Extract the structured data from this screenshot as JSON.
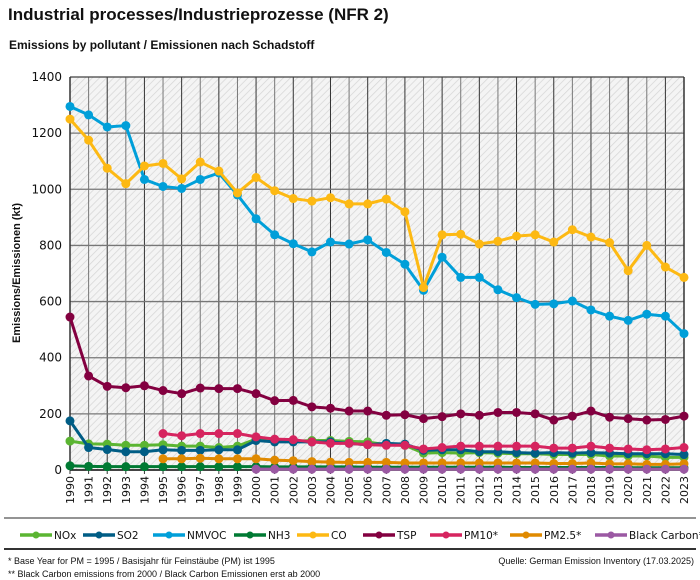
{
  "title": "Industrial processes/Industrieprozesse (NFR 2)",
  "subtitle": "Emissions by pollutant / Emissionen nach Schadstoff",
  "footnotes": [
    "* Base Year for PM = 1995 / Basisjahr für Feinstäube (PM) ist 1995",
    "** Black Carbon emissions  from 2000 / Black Carbon Emissionen erst ab 2000"
  ],
  "source": "Quelle: German Emission Inventory (17.03.2025)",
  "chart_data": {
    "type": "line",
    "title": "Industrial processes/Industrieprozesse (NFR 2)",
    "subtitle": "Emissions by pollutant / Emissionen nach Schadstoff",
    "xlabel": "",
    "ylabel": "Emissions/Emissionen (kt)",
    "ylim": [
      0,
      1400
    ],
    "yticks": [
      0,
      200,
      400,
      600,
      800,
      1000,
      1200,
      1400
    ],
    "grid": true,
    "legend": "bottom",
    "x": [
      1990,
      1991,
      1992,
      1993,
      1994,
      1995,
      1996,
      1997,
      1998,
      1999,
      2000,
      2001,
      2002,
      2003,
      2004,
      2005,
      2006,
      2007,
      2008,
      2009,
      2010,
      2011,
      2012,
      2013,
      2014,
      2015,
      2016,
      2017,
      2018,
      2019,
      2020,
      2021,
      2022,
      2023
    ],
    "series": [
      {
        "name": "NOx",
        "color": "#5bb532",
        "values": [
          103,
          93,
          92,
          88,
          88,
          90,
          85,
          85,
          80,
          85,
          110,
          108,
          102,
          105,
          105,
          102,
          100,
          90,
          88,
          60,
          62,
          60,
          62,
          60,
          58,
          58,
          55,
          55,
          55,
          50,
          50,
          50,
          45,
          45
        ]
      },
      {
        "name": "SO2",
        "color": "#005d85",
        "values": [
          175,
          80,
          73,
          65,
          65,
          72,
          70,
          70,
          72,
          72,
          105,
          100,
          100,
          100,
          100,
          95,
          90,
          95,
          92,
          70,
          72,
          72,
          65,
          65,
          62,
          60,
          62,
          60,
          62,
          60,
          58,
          58,
          58,
          55
        ]
      },
      {
        "name": "NMVOC",
        "color": "#009fd9",
        "values": [
          1295,
          1265,
          1222,
          1227,
          1035,
          1010,
          1003,
          1035,
          1058,
          980,
          895,
          838,
          806,
          777,
          812,
          805,
          820,
          775,
          733,
          640,
          758,
          686,
          686,
          642,
          614,
          590,
          592,
          602,
          570,
          548,
          533,
          555,
          548,
          486
        ]
      },
      {
        "name": "NH3",
        "color": "#007a33",
        "values": [
          15,
          13,
          12,
          12,
          12,
          12,
          12,
          12,
          12,
          12,
          12,
          11,
          11,
          11,
          11,
          11,
          10,
          10,
          10,
          10,
          10,
          10,
          10,
          10,
          9,
          9,
          9,
          9,
          9,
          9,
          8,
          8,
          8,
          8
        ]
      },
      {
        "name": "CO",
        "color": "#fdb913",
        "values": [
          1250,
          1175,
          1075,
          1020,
          1083,
          1092,
          1037,
          1097,
          1065,
          987,
          1042,
          995,
          967,
          958,
          970,
          948,
          948,
          965,
          920,
          650,
          838,
          840,
          805,
          815,
          833,
          838,
          812,
          856,
          830,
          810,
          710,
          800,
          723,
          686
        ]
      },
      {
        "name": "TSP",
        "color": "#830040",
        "values": [
          545,
          335,
          298,
          293,
          300,
          283,
          272,
          292,
          290,
          290,
          272,
          247,
          248,
          225,
          220,
          210,
          210,
          195,
          197,
          183,
          190,
          200,
          195,
          205,
          205,
          200,
          178,
          192,
          210,
          188,
          183,
          178,
          180,
          192
        ]
      },
      {
        "name": "PM10*",
        "color": "#d6245f",
        "values": [
          null,
          null,
          null,
          null,
          null,
          130,
          122,
          130,
          130,
          130,
          118,
          110,
          108,
          100,
          95,
          95,
          90,
          88,
          88,
          75,
          80,
          85,
          85,
          85,
          85,
          85,
          78,
          78,
          85,
          78,
          75,
          72,
          75,
          80
        ]
      },
      {
        "name": "PM2.5*",
        "color": "#e08a00",
        "values": [
          null,
          null,
          null,
          null,
          null,
          40,
          40,
          42,
          40,
          40,
          40,
          35,
          33,
          30,
          28,
          27,
          27,
          27,
          25,
          25,
          25,
          25,
          25,
          25,
          25,
          25,
          23,
          23,
          25,
          22,
          22,
          20,
          20,
          22
        ]
      },
      {
        "name": "Black Carbon**",
        "color": "#9b59a3",
        "values": [
          null,
          null,
          null,
          null,
          null,
          null,
          null,
          null,
          null,
          null,
          3,
          3,
          3,
          3,
          3,
          3,
          3,
          3,
          3,
          3,
          3,
          3,
          3,
          3,
          3,
          3,
          3,
          3,
          3,
          3,
          3,
          3,
          3,
          3
        ]
      }
    ]
  }
}
